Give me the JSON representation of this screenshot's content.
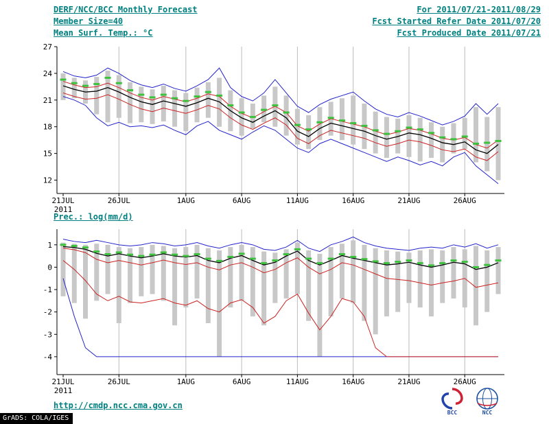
{
  "header": {
    "left": [
      "DERF/NCC/BCC Monthly Forecast",
      "Member Size=40",
      "Mean Surf. Temp.: °C"
    ],
    "right": [
      "For 2011/07/21-2011/08/29",
      "Fcst Started Refer Date 2011/07/20",
      "Fcst Produced Date 2011/07/21"
    ]
  },
  "footer": {
    "url": "http://cmdp.ncc.cma.gov.cn",
    "grads_credit": "GrADS: COLA/IGES"
  },
  "logos": {
    "bcc": "BCC",
    "ncc": "NCC"
  },
  "colors": {
    "teal": "#008080",
    "blue": "#2222cc",
    "red": "#cc2222",
    "black": "#000000",
    "green": "#3cc23c",
    "bar": "#c8c8c8",
    "grid": "#bbbbbb"
  },
  "chart_data": [
    {
      "type": "line",
      "title": "Mean Surf. Temp.: °C",
      "xlabel": "",
      "ylabel": "°C",
      "ylim": [
        10.5,
        27
      ],
      "yticks": [
        12,
        15,
        18,
        21,
        24,
        27
      ],
      "xtick_labels": [
        "21JUL",
        "26JUL",
        "1AUG",
        "6AUG",
        "11AUG",
        "16AUG",
        "21AUG",
        "26AUG"
      ],
      "xtick_days": [
        0,
        5,
        11,
        16,
        21,
        26,
        31,
        36
      ],
      "x_year_label": "2011",
      "grid": "vertical-only",
      "legend": "none",
      "bars": {
        "name": "ensemble-spread-bar",
        "color": "#c8c8c8",
        "high": [
          24.0,
          23.5,
          23.2,
          23.6,
          24.3,
          23.8,
          23.0,
          22.5,
          22.2,
          22.6,
          22.1,
          21.8,
          22.4,
          23.0,
          23.5,
          22.1,
          21.2,
          20.6,
          21.5,
          22.5,
          21.5,
          20.0,
          19.3,
          20.2,
          20.8,
          21.2,
          21.5,
          20.6,
          19.7,
          19.1,
          18.9,
          19.3,
          19.0,
          18.5,
          18.0,
          18.4,
          19.0,
          20.2,
          19.1,
          20.2
        ],
        "low": [
          21.0,
          21.2,
          20.6,
          19.4,
          18.5,
          19.0,
          18.4,
          18.5,
          18.3,
          18.6,
          18.0,
          17.5,
          18.5,
          19.0,
          18.0,
          17.5,
          17.0,
          17.8,
          18.5,
          18.0,
          17.0,
          16.0,
          15.5,
          16.5,
          17.0,
          16.5,
          16.0,
          15.5,
          15.0,
          14.5,
          15.0,
          14.6,
          14.1,
          14.5,
          14.0,
          15.0,
          15.5,
          14.0,
          13.0,
          12.0
        ]
      },
      "series": [
        {
          "name": "ensemble-max",
          "color": "#2222cc",
          "width": 1,
          "values": [
            24.2,
            23.7,
            23.5,
            23.8,
            24.6,
            24.0,
            23.2,
            22.7,
            22.4,
            22.8,
            22.3,
            22.0,
            22.6,
            23.3,
            24.6,
            22.4,
            21.4,
            20.9,
            21.8,
            23.3,
            21.8,
            20.3,
            19.6,
            20.5,
            21.1,
            21.5,
            21.9,
            20.9,
            20.0,
            19.4,
            19.1,
            19.6,
            19.2,
            18.7,
            18.2,
            18.6,
            19.2,
            20.6,
            19.4,
            20.6
          ]
        },
        {
          "name": "ensemble-min",
          "color": "#2222cc",
          "width": 1,
          "values": [
            21.4,
            21.0,
            20.4,
            19.0,
            18.1,
            18.5,
            18.0,
            18.1,
            17.9,
            18.2,
            17.6,
            17.1,
            18.1,
            18.6,
            17.6,
            17.1,
            16.6,
            17.4,
            18.1,
            17.6,
            16.6,
            15.6,
            15.1,
            16.1,
            16.6,
            16.1,
            15.6,
            15.1,
            14.6,
            14.1,
            14.6,
            14.2,
            13.7,
            14.1,
            13.6,
            14.6,
            15.1,
            13.6,
            12.6,
            11.6
          ]
        },
        {
          "name": "upper-quartile",
          "color": "#cc2222",
          "width": 1,
          "values": [
            23.1,
            22.7,
            22.4,
            22.5,
            22.9,
            22.4,
            21.8,
            21.3,
            21.0,
            21.4,
            21.1,
            20.8,
            21.2,
            21.7,
            21.4,
            20.3,
            19.5,
            19.0,
            19.7,
            20.3,
            19.6,
            18.1,
            17.5,
            18.3,
            18.9,
            18.6,
            18.3,
            18.0,
            17.5,
            17.1,
            17.4,
            17.8,
            17.6,
            17.2,
            16.7,
            16.5,
            16.8,
            16.0,
            15.6,
            16.5
          ]
        },
        {
          "name": "lower-quartile",
          "color": "#cc2222",
          "width": 1,
          "values": [
            21.8,
            21.4,
            21.1,
            21.2,
            21.6,
            21.1,
            20.5,
            20.0,
            19.7,
            20.1,
            19.8,
            19.5,
            19.9,
            20.4,
            20.0,
            19.0,
            18.2,
            17.7,
            18.4,
            19.0,
            18.2,
            16.7,
            16.1,
            17.0,
            17.6,
            17.3,
            17.0,
            16.7,
            16.2,
            15.8,
            16.1,
            16.5,
            16.3,
            15.9,
            15.4,
            15.2,
            15.5,
            14.6,
            14.2,
            15.2
          ]
        },
        {
          "name": "ensemble-mean",
          "color": "#000000",
          "width": 1.3,
          "values": [
            22.6,
            22.2,
            21.9,
            22.0,
            22.4,
            21.9,
            21.3,
            20.8,
            20.5,
            20.9,
            20.6,
            20.3,
            20.7,
            21.2,
            20.8,
            19.8,
            19.0,
            18.5,
            19.2,
            19.8,
            19.0,
            17.5,
            16.9,
            17.8,
            18.4,
            18.1,
            17.8,
            17.5,
            17.0,
            16.6,
            16.9,
            17.3,
            17.1,
            16.7,
            16.2,
            16.0,
            16.3,
            15.4,
            15.0,
            16.0
          ]
        }
      ],
      "dash_series": {
        "name": "calibrated-forecast",
        "color": "#3cc23c",
        "values": [
          23.3,
          22.9,
          22.6,
          22.8,
          23.5,
          22.9,
          22.1,
          21.6,
          21.3,
          21.6,
          21.2,
          20.9,
          21.4,
          21.9,
          21.5,
          20.4,
          19.6,
          19.1,
          19.9,
          20.4,
          19.6,
          18.2,
          17.7,
          18.5,
          19.0,
          18.7,
          18.4,
          18.1,
          17.6,
          17.2,
          17.5,
          17.9,
          17.7,
          17.3,
          16.8,
          16.6,
          16.9,
          16.1,
          16.2,
          16.4
        ]
      }
    },
    {
      "type": "line",
      "title": "Prec.: log(mm/d)",
      "xlabel": "",
      "ylabel": "log(mm/d)",
      "ylim": [
        -4.8,
        1.7
      ],
      "yticks": [
        -4,
        -3,
        -2,
        -1,
        0,
        1
      ],
      "xtick_labels": [
        "21JUL",
        "26JUL",
        "1AUG",
        "6AUG",
        "11AUG",
        "16AUG",
        "21AUG",
        "26AUG"
      ],
      "xtick_days": [
        0,
        5,
        11,
        16,
        21,
        26,
        31,
        36
      ],
      "x_year_label": "2011",
      "grid": "vertical-only",
      "legend": "none",
      "bars": {
        "name": "ensemble-spread-bar",
        "color": "#c8c8c8",
        "high": [
          1.1,
          1.05,
          1.0,
          1.05,
          1.0,
          0.9,
          0.85,
          0.9,
          1.0,
          0.95,
          0.85,
          0.9,
          1.0,
          0.85,
          0.75,
          0.9,
          1.0,
          0.9,
          0.7,
          0.65,
          0.8,
          1.1,
          0.75,
          0.6,
          0.9,
          1.05,
          1.2,
          1.0,
          0.85,
          0.75,
          0.7,
          0.65,
          0.75,
          0.8,
          0.75,
          0.9,
          0.8,
          0.95,
          0.75,
          0.9
        ],
        "low": [
          -1.3,
          -1.6,
          -2.3,
          -1.5,
          -1.2,
          -2.5,
          -1.6,
          -1.3,
          -1.2,
          -1.5,
          -2.6,
          -1.8,
          -1.4,
          -2.5,
          -4.0,
          -1.8,
          -1.5,
          -2.2,
          -2.6,
          -1.6,
          -1.4,
          -1.2,
          -2.4,
          -4.0,
          -2.2,
          -1.4,
          -1.6,
          -2.4,
          -3.0,
          -2.2,
          -2.0,
          -1.6,
          -1.8,
          -2.2,
          -1.6,
          -1.4,
          -1.8,
          -2.6,
          -2.0,
          -1.2
        ]
      },
      "series": [
        {
          "name": "ensemble-max",
          "color": "#2222cc",
          "width": 1,
          "values": [
            1.25,
            1.15,
            1.1,
            1.2,
            1.1,
            1.0,
            0.95,
            1.0,
            1.1,
            1.05,
            0.95,
            1.0,
            1.1,
            0.95,
            0.85,
            1.0,
            1.1,
            1.0,
            0.8,
            0.75,
            0.9,
            1.2,
            0.85,
            0.7,
            1.0,
            1.15,
            1.35,
            1.1,
            0.95,
            0.85,
            0.8,
            0.75,
            0.85,
            0.9,
            0.85,
            1.0,
            0.9,
            1.05,
            0.85,
            1.0
          ]
        },
        {
          "name": "ensemble-min",
          "color": "#2222cc",
          "width": 1,
          "values": [
            -0.5,
            -2.2,
            -3.6,
            -4.0,
            -4.0,
            -4.0,
            -4.0,
            -4.0,
            -4.0,
            -4.0,
            -4.0,
            -4.0,
            -4.0,
            -4.0,
            -4.0,
            -4.0,
            -4.0,
            -4.0,
            -4.0,
            -4.0,
            -4.0,
            -4.0,
            -4.0,
            -4.0,
            -4.0,
            -4.0,
            -4.0,
            -4.0,
            -4.0,
            -4.0,
            -4.0,
            -4.0,
            -4.0,
            -4.0,
            -4.0,
            -4.0,
            -4.0,
            -4.0,
            -4.0,
            -4.0
          ]
        },
        {
          "name": "upper-quartile",
          "color": "#cc2222",
          "width": 1,
          "values": [
            0.85,
            0.78,
            0.65,
            0.35,
            0.2,
            0.3,
            0.2,
            0.1,
            0.2,
            0.32,
            0.2,
            0.12,
            0.2,
            0.0,
            -0.12,
            0.1,
            0.2,
            0.0,
            -0.25,
            -0.1,
            0.2,
            0.42,
            0.0,
            -0.3,
            -0.1,
            0.2,
            0.1,
            -0.1,
            -0.3,
            -0.5,
            -0.55,
            -0.6,
            -0.7,
            -0.8,
            -0.7,
            -0.62,
            -0.5,
            -0.9,
            -0.8,
            -0.7
          ]
        },
        {
          "name": "lower-quartile",
          "color": "#cc2222",
          "width": 1,
          "values": [
            0.3,
            -0.1,
            -0.6,
            -1.2,
            -1.5,
            -1.3,
            -1.55,
            -1.6,
            -1.5,
            -1.4,
            -1.6,
            -1.7,
            -1.5,
            -1.85,
            -2.0,
            -1.6,
            -1.45,
            -1.8,
            -2.5,
            -2.2,
            -1.5,
            -1.2,
            -2.05,
            -2.8,
            -2.2,
            -1.4,
            -1.55,
            -2.2,
            -3.6,
            -4.0,
            -4.0,
            -4.0,
            -4.0,
            -4.0,
            -4.0,
            -4.0,
            -4.0,
            -4.0,
            -4.0,
            -4.0
          ]
        },
        {
          "name": "ensemble-mean",
          "color": "#000000",
          "width": 1.3,
          "values": [
            0.92,
            0.88,
            0.8,
            0.62,
            0.5,
            0.6,
            0.5,
            0.42,
            0.5,
            0.6,
            0.5,
            0.45,
            0.52,
            0.3,
            0.2,
            0.4,
            0.52,
            0.3,
            0.1,
            0.22,
            0.5,
            0.72,
            0.3,
            0.1,
            0.3,
            0.52,
            0.4,
            0.3,
            0.2,
            0.1,
            0.15,
            0.22,
            0.1,
            0.0,
            0.1,
            0.22,
            0.15,
            -0.1,
            0.0,
            0.2
          ]
        }
      ],
      "dash_series": {
        "name": "calibrated-forecast",
        "color": "#3cc23c",
        "values": [
          1.0,
          0.95,
          0.88,
          0.7,
          0.58,
          0.66,
          0.56,
          0.5,
          0.56,
          0.66,
          0.56,
          0.5,
          0.58,
          0.38,
          0.28,
          0.46,
          0.6,
          0.38,
          0.18,
          0.3,
          0.58,
          0.8,
          0.38,
          0.18,
          0.38,
          0.58,
          0.46,
          0.36,
          0.26,
          0.18,
          0.24,
          0.3,
          0.18,
          0.08,
          0.18,
          0.3,
          0.24,
          0.0,
          0.1,
          0.3
        ]
      }
    }
  ]
}
